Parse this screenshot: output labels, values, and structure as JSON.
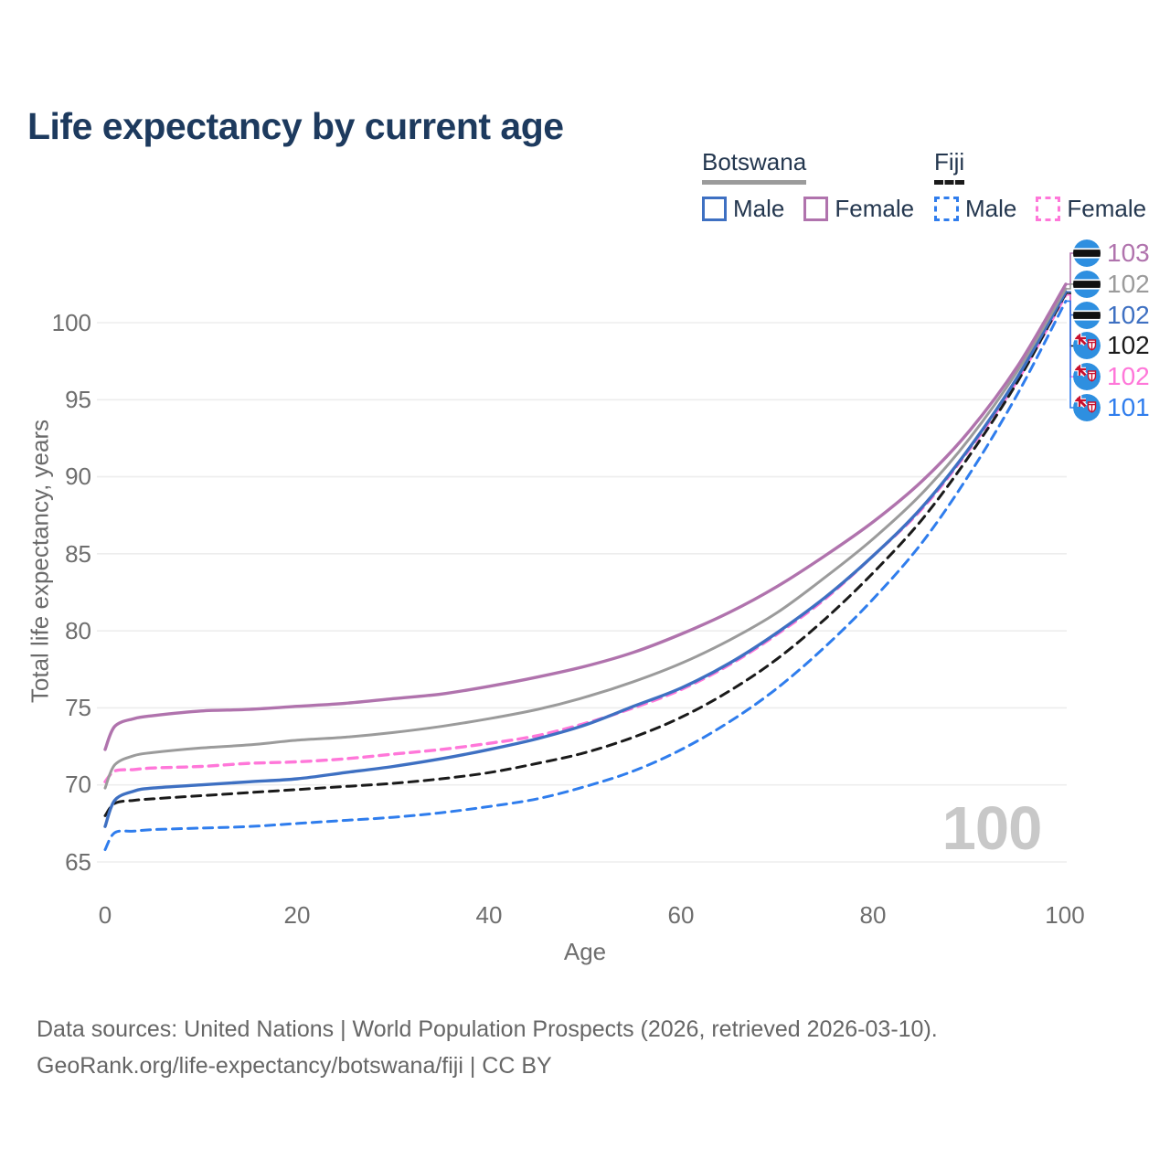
{
  "header": {
    "title": "Life expectancy by current age"
  },
  "legend": {
    "groups": [
      {
        "name": "Botswana",
        "style": "solid",
        "items": [
          {
            "label": "Male"
          },
          {
            "label": "Female"
          }
        ]
      },
      {
        "name": "Fiji",
        "style": "dashed",
        "items": [
          {
            "label": "Male"
          },
          {
            "label": "Female"
          }
        ]
      }
    ]
  },
  "chart_data": {
    "type": "line",
    "title": "Life expectancy by current age",
    "xlabel": "Age",
    "ylabel": "Total life expectancy, years",
    "xlim": [
      0,
      100
    ],
    "ylim": [
      65,
      103
    ],
    "grid": "horizontal-only",
    "legend_position": "top-right",
    "x_ticks": [
      "0",
      "20",
      "40",
      "60",
      "80",
      "100"
    ],
    "y_ticks": [
      "100",
      "95",
      "90",
      "85",
      "80",
      "75",
      "70",
      "65"
    ],
    "grid_values": [
      100,
      95,
      90,
      85,
      80,
      75,
      70,
      65
    ],
    "watermark": "100",
    "series": [
      {
        "name": "Botswana Female",
        "country": "botswana",
        "sex": "female",
        "color": "#b073ad",
        "dashed": false,
        "width": 3.4,
        "end_label": "103",
        "flag": "botswana",
        "points": [
          [
            0,
            72.3
          ],
          [
            1,
            73.8
          ],
          [
            3,
            74.3
          ],
          [
            5,
            74.5
          ],
          [
            10,
            74.8
          ],
          [
            15,
            74.9
          ],
          [
            20,
            75.1
          ],
          [
            25,
            75.3
          ],
          [
            30,
            75.6
          ],
          [
            35,
            75.9
          ],
          [
            40,
            76.4
          ],
          [
            45,
            77.0
          ],
          [
            50,
            77.7
          ],
          [
            55,
            78.6
          ],
          [
            60,
            79.8
          ],
          [
            65,
            81.2
          ],
          [
            70,
            82.9
          ],
          [
            75,
            84.9
          ],
          [
            80,
            87.1
          ],
          [
            85,
            89.7
          ],
          [
            90,
            93.0
          ],
          [
            95,
            97.2
          ],
          [
            100,
            102.5
          ]
        ]
      },
      {
        "name": "Botswana",
        "country": "botswana",
        "sex": "total",
        "color": "#9b9b9b",
        "dashed": false,
        "width": 3.0,
        "end_label": "102",
        "flag": "botswana",
        "points": [
          [
            0,
            69.8
          ],
          [
            1,
            71.3
          ],
          [
            3,
            71.9
          ],
          [
            5,
            72.1
          ],
          [
            10,
            72.4
          ],
          [
            15,
            72.6
          ],
          [
            20,
            72.9
          ],
          [
            25,
            73.1
          ],
          [
            30,
            73.4
          ],
          [
            35,
            73.8
          ],
          [
            40,
            74.3
          ],
          [
            45,
            74.9
          ],
          [
            50,
            75.7
          ],
          [
            55,
            76.7
          ],
          [
            60,
            77.9
          ],
          [
            65,
            79.4
          ],
          [
            70,
            81.2
          ],
          [
            75,
            83.5
          ],
          [
            80,
            86.0
          ],
          [
            85,
            88.9
          ],
          [
            90,
            92.5
          ],
          [
            95,
            96.9
          ],
          [
            100,
            102.2
          ]
        ]
      },
      {
        "name": "Botswana Male",
        "country": "botswana",
        "sex": "male",
        "color": "#3e70c2",
        "dashed": false,
        "width": 3.4,
        "end_label": "102",
        "flag": "botswana",
        "points": [
          [
            0,
            67.3
          ],
          [
            1,
            69.0
          ],
          [
            3,
            69.6
          ],
          [
            5,
            69.8
          ],
          [
            10,
            70.0
          ],
          [
            15,
            70.2
          ],
          [
            20,
            70.4
          ],
          [
            25,
            70.8
          ],
          [
            30,
            71.2
          ],
          [
            35,
            71.7
          ],
          [
            40,
            72.3
          ],
          [
            45,
            73.0
          ],
          [
            50,
            73.9
          ],
          [
            55,
            75.1
          ],
          [
            60,
            76.3
          ],
          [
            65,
            77.9
          ],
          [
            70,
            79.9
          ],
          [
            75,
            82.2
          ],
          [
            80,
            84.9
          ],
          [
            85,
            88.0
          ],
          [
            90,
            91.9
          ],
          [
            95,
            96.5
          ],
          [
            100,
            102.0
          ]
        ]
      },
      {
        "name": "Fiji",
        "country": "fiji",
        "sex": "total",
        "color": "#1a1a1a",
        "dashed": true,
        "width": 3.0,
        "end_label": "102",
        "flag": "fiji",
        "points": [
          [
            0,
            68.0
          ],
          [
            1,
            68.8
          ],
          [
            3,
            69.0
          ],
          [
            5,
            69.1
          ],
          [
            10,
            69.3
          ],
          [
            15,
            69.5
          ],
          [
            20,
            69.7
          ],
          [
            25,
            69.9
          ],
          [
            30,
            70.1
          ],
          [
            35,
            70.4
          ],
          [
            40,
            70.8
          ],
          [
            45,
            71.4
          ],
          [
            50,
            72.1
          ],
          [
            55,
            73.1
          ],
          [
            60,
            74.4
          ],
          [
            65,
            76.1
          ],
          [
            70,
            78.2
          ],
          [
            75,
            80.8
          ],
          [
            80,
            83.8
          ],
          [
            85,
            87.2
          ],
          [
            90,
            91.4
          ],
          [
            95,
            96.2
          ],
          [
            100,
            101.9
          ]
        ]
      },
      {
        "name": "Fiji Female",
        "country": "fiji",
        "sex": "female",
        "color": "#ff77d9",
        "dashed": true,
        "width": 3.4,
        "end_label": "102",
        "flag": "fiji",
        "points": [
          [
            0,
            70.2
          ],
          [
            1,
            70.9
          ],
          [
            3,
            71.0
          ],
          [
            5,
            71.1
          ],
          [
            10,
            71.2
          ],
          [
            15,
            71.4
          ],
          [
            20,
            71.5
          ],
          [
            25,
            71.7
          ],
          [
            30,
            72.0
          ],
          [
            35,
            72.3
          ],
          [
            40,
            72.7
          ],
          [
            45,
            73.2
          ],
          [
            50,
            74.0
          ],
          [
            55,
            75.0
          ],
          [
            60,
            76.2
          ],
          [
            65,
            77.8
          ],
          [
            70,
            79.8
          ],
          [
            75,
            82.1
          ],
          [
            80,
            84.9
          ],
          [
            85,
            87.9
          ],
          [
            90,
            91.8
          ],
          [
            95,
            96.3
          ],
          [
            100,
            101.8
          ]
        ]
      },
      {
        "name": "Fiji Male",
        "country": "fiji",
        "sex": "male",
        "color": "#2f7ded",
        "dashed": true,
        "width": 3.0,
        "end_label": "101",
        "flag": "fiji",
        "points": [
          [
            0,
            65.8
          ],
          [
            1,
            66.9
          ],
          [
            3,
            67.0
          ],
          [
            5,
            67.1
          ],
          [
            10,
            67.2
          ],
          [
            15,
            67.3
          ],
          [
            20,
            67.5
          ],
          [
            25,
            67.7
          ],
          [
            30,
            67.9
          ],
          [
            35,
            68.2
          ],
          [
            40,
            68.6
          ],
          [
            45,
            69.1
          ],
          [
            50,
            69.9
          ],
          [
            55,
            70.9
          ],
          [
            60,
            72.3
          ],
          [
            65,
            74.1
          ],
          [
            70,
            76.3
          ],
          [
            75,
            79.0
          ],
          [
            80,
            82.1
          ],
          [
            85,
            85.7
          ],
          [
            90,
            90.2
          ],
          [
            95,
            95.4
          ],
          [
            100,
            101.4
          ]
        ]
      }
    ]
  },
  "footer": {
    "line1": "Data sources: United Nations | World Population Prospects (2026, retrieved 2026-03-10).",
    "line2": "GeoRank.org/life-expectancy/botswana/fiji | CC BY"
  }
}
